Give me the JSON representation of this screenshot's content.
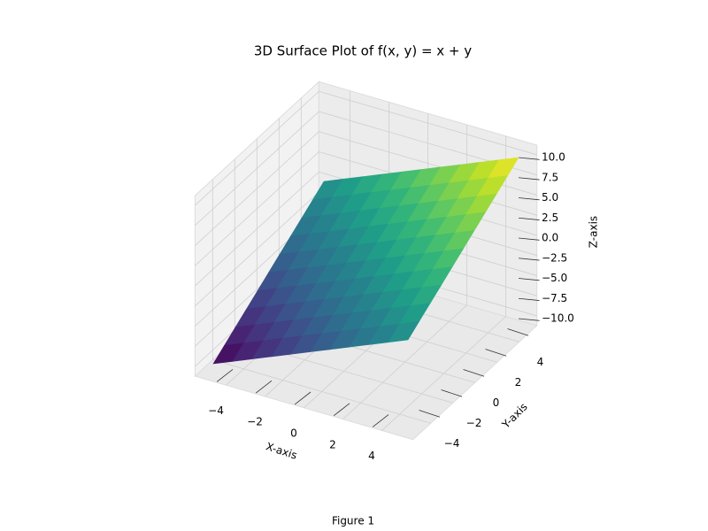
{
  "window_title": "Figure 1",
  "chart_data": {
    "type": "surface",
    "title": "3D Surface Plot of f(x, y) = x + y",
    "xlabel": "X-axis",
    "ylabel": "Y-axis",
    "zlabel": "Z-axis",
    "colormap": "viridis",
    "x": [
      -5,
      -4,
      -3,
      -2,
      -1,
      0,
      1,
      2,
      3,
      4,
      5
    ],
    "y": [
      -5,
      -4,
      -3,
      -2,
      -1,
      0,
      1,
      2,
      3,
      4,
      5
    ],
    "z": [
      [
        -10,
        -9,
        -8,
        -7,
        -6,
        -5,
        -4,
        -3,
        -2,
        -1,
        0
      ],
      [
        -9,
        -8,
        -7,
        -6,
        -5,
        -4,
        -3,
        -2,
        -1,
        0,
        1
      ],
      [
        -8,
        -7,
        -6,
        -5,
        -4,
        -3,
        -2,
        -1,
        0,
        1,
        2
      ],
      [
        -7,
        -6,
        -5,
        -4,
        -3,
        -2,
        -1,
        0,
        1,
        2,
        3
      ],
      [
        -6,
        -5,
        -4,
        -3,
        -2,
        -1,
        0,
        1,
        2,
        3,
        4
      ],
      [
        -5,
        -4,
        -3,
        -2,
        -1,
        0,
        1,
        2,
        3,
        4,
        5
      ],
      [
        -4,
        -3,
        -2,
        -1,
        0,
        1,
        2,
        3,
        4,
        5,
        6
      ],
      [
        -3,
        -2,
        -1,
        0,
        1,
        2,
        3,
        4,
        5,
        6,
        7
      ],
      [
        -2,
        -1,
        0,
        1,
        2,
        3,
        4,
        5,
        6,
        7,
        8
      ],
      [
        -1,
        0,
        1,
        2,
        3,
        4,
        5,
        6,
        7,
        8,
        9
      ],
      [
        0,
        1,
        2,
        3,
        4,
        5,
        6,
        7,
        8,
        9,
        10
      ]
    ],
    "xlim": [
      -5,
      5
    ],
    "ylim": [
      -5,
      5
    ],
    "zlim": [
      -10,
      10
    ],
    "xticks": [
      {
        "value": -4,
        "label": "−4"
      },
      {
        "value": -2,
        "label": "−2"
      },
      0,
      2,
      4
    ],
    "yticks": [
      {
        "value": -4,
        "label": "−4"
      },
      {
        "value": -2,
        "label": "−2"
      },
      0,
      2,
      4
    ],
    "zticks": [
      {
        "value": -10,
        "label": "−10.0"
      },
      {
        "value": -7.5,
        "label": "−7.5"
      },
      {
        "value": -5,
        "label": "−5.0"
      },
      {
        "value": -2.5,
        "label": "−2.5"
      },
      {
        "value": 0,
        "label": "0.0"
      },
      2.5,
      {
        "value": 5,
        "label": "5.0"
      },
      7.5,
      {
        "value": 10,
        "label": "10.0"
      }
    ],
    "grid": true
  }
}
